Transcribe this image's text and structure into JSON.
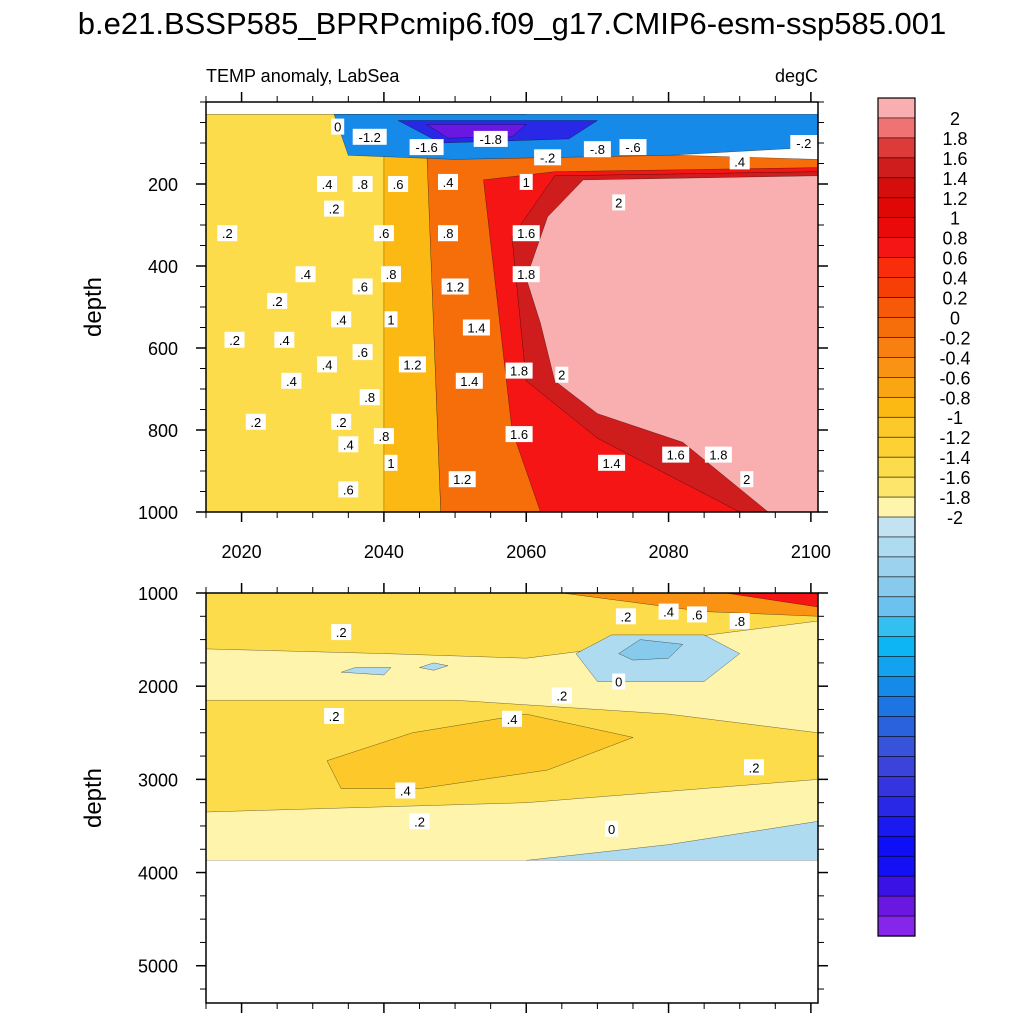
{
  "figure": {
    "title": "b.e21.BSSP585_BPRPcmip6.f09_g17.CMIP6-esm-ssp585.001"
  },
  "chart_data": [
    {
      "type": "heatmap",
      "panel": "upper",
      "subtitle_left": "TEMP anomaly, LabSea",
      "subtitle_right": "degC",
      "xlabel": "",
      "ylabel": "depth",
      "xlim": [
        2015,
        2101
      ],
      "ylim": [
        1000,
        0
      ],
      "xticks": [
        2020,
        2040,
        2060,
        2080,
        2100
      ],
      "xtick_labels": [
        "2020",
        "2040",
        "2060",
        "2080",
        "2100"
      ],
      "yticks": [
        200,
        400,
        600,
        800,
        1000
      ],
      "ytick_labels": [
        "200",
        "400",
        "600",
        "800",
        "1000"
      ],
      "grid": false,
      "regions": [
        {
          "value": 0.3,
          "polygon": [
            [
              2015,
              30
            ],
            [
              2060,
              30
            ],
            [
              2060,
              1000
            ],
            [
              2015,
              1000
            ]
          ]
        },
        {
          "value": 0.6,
          "polygon": [
            [
              2040,
              90
            ],
            [
              2046,
              90
            ],
            [
              2048,
              1000
            ],
            [
              2040,
              1000
            ]
          ]
        },
        {
          "value": 1.0,
          "polygon": [
            [
              2046,
              110
            ],
            [
              2062,
              120
            ],
            [
              2101,
              140
            ],
            [
              2101,
              1000
            ],
            [
              2048,
              1000
            ]
          ]
        },
        {
          "value": 1.4,
          "polygon": [
            [
              2054,
              190
            ],
            [
              2064,
              170
            ],
            [
              2101,
              160
            ],
            [
              2101,
              1000
            ],
            [
              2062,
              1000
            ],
            [
              2058,
              800
            ]
          ]
        },
        {
          "value": 1.8,
          "polygon": [
            [
              2058,
              330
            ],
            [
              2064,
              180
            ],
            [
              2101,
              170
            ],
            [
              2101,
              1000
            ],
            [
              2090,
              1000
            ],
            [
              2070,
              820
            ],
            [
              2060,
              680
            ]
          ]
        },
        {
          "value": 2.1,
          "polygon": [
            [
              2063,
              280
            ],
            [
              2068,
              190
            ],
            [
              2101,
              180
            ],
            [
              2101,
              1000
            ],
            [
              2094,
              1000
            ],
            [
              2082,
              830
            ],
            [
              2070,
              760
            ],
            [
              2064,
              680
            ],
            [
              2062,
              540
            ],
            [
              2060,
              430
            ]
          ]
        },
        {
          "value": -0.8,
          "polygon": [
            [
              2033,
              30
            ],
            [
              2101,
              30
            ],
            [
              2101,
              110
            ],
            [
              2080,
              130
            ],
            [
              2050,
              140
            ],
            [
              2035,
              130
            ]
          ]
        },
        {
          "value": -1.4,
          "polygon": [
            [
              2042,
              45
            ],
            [
              2070,
              45
            ],
            [
              2066,
              90
            ],
            [
              2048,
              100
            ]
          ]
        },
        {
          "value": -1.9,
          "polygon": [
            [
              2046,
              55
            ],
            [
              2060,
              55
            ],
            [
              2058,
              85
            ],
            [
              2049,
              88
            ]
          ]
        }
      ],
      "contour_labels": [
        {
          "text": "0",
          "x": 2033.5,
          "y": 60
        },
        {
          "text": "-1.2",
          "x": 2038,
          "y": 85
        },
        {
          "text": "-1.6",
          "x": 2046,
          "y": 110
        },
        {
          "text": "-1.8",
          "x": 2055,
          "y": 90
        },
        {
          "text": "-.2",
          "x": 2063,
          "y": 135
        },
        {
          "text": "-.8",
          "x": 2070,
          "y": 115
        },
        {
          "text": "-.6",
          "x": 2075,
          "y": 110
        },
        {
          "text": ".4",
          "x": 2090,
          "y": 145
        },
        {
          "text": "-.2",
          "x": 2099,
          "y": 100
        },
        {
          "text": ".4",
          "x": 2032,
          "y": 200
        },
        {
          "text": ".8",
          "x": 2037,
          "y": 200
        },
        {
          "text": ".6",
          "x": 2042,
          "y": 200
        },
        {
          "text": ".4",
          "x": 2049,
          "y": 195
        },
        {
          "text": "1",
          "x": 2060,
          "y": 195
        },
        {
          "text": "2",
          "x": 2073,
          "y": 245
        },
        {
          "text": ".2",
          "x": 2033,
          "y": 260
        },
        {
          "text": ".6",
          "x": 2040,
          "y": 320
        },
        {
          "text": ".8",
          "x": 2049,
          "y": 320
        },
        {
          "text": "1.6",
          "x": 2060,
          "y": 320
        },
        {
          "text": ".2",
          "x": 2018,
          "y": 320
        },
        {
          "text": ".4",
          "x": 2029,
          "y": 420
        },
        {
          "text": ".8",
          "x": 2041,
          "y": 420
        },
        {
          "text": "1.8",
          "x": 2060,
          "y": 420
        },
        {
          "text": ".6",
          "x": 2037,
          "y": 450
        },
        {
          "text": "1.2",
          "x": 2050,
          "y": 450
        },
        {
          "text": ".2",
          "x": 2025,
          "y": 485
        },
        {
          "text": ".4",
          "x": 2034,
          "y": 530
        },
        {
          "text": "1",
          "x": 2041,
          "y": 530
        },
        {
          "text": "1.4",
          "x": 2053,
          "y": 550
        },
        {
          "text": ".2",
          "x": 2019,
          "y": 580
        },
        {
          "text": ".4",
          "x": 2026,
          "y": 580
        },
        {
          "text": ".6",
          "x": 2037,
          "y": 610
        },
        {
          "text": ".4",
          "x": 2032,
          "y": 640
        },
        {
          "text": "1.2",
          "x": 2044,
          "y": 640
        },
        {
          "text": "1.8",
          "x": 2059,
          "y": 655
        },
        {
          "text": "2",
          "x": 2065,
          "y": 665
        },
        {
          "text": "1.4",
          "x": 2052,
          "y": 680
        },
        {
          "text": ".4",
          "x": 2027,
          "y": 680
        },
        {
          "text": ".8",
          "x": 2038,
          "y": 720
        },
        {
          "text": ".2",
          "x": 2022,
          "y": 780
        },
        {
          "text": ".2",
          "x": 2034,
          "y": 780
        },
        {
          "text": "1.6",
          "x": 2059,
          "y": 810
        },
        {
          "text": ".8",
          "x": 2040,
          "y": 815
        },
        {
          "text": ".4",
          "x": 2035,
          "y": 835
        },
        {
          "text": "1.6",
          "x": 2081,
          "y": 860
        },
        {
          "text": "1.8",
          "x": 2087,
          "y": 860
        },
        {
          "text": "1",
          "x": 2041,
          "y": 880
        },
        {
          "text": "1.4",
          "x": 2072,
          "y": 880
        },
        {
          "text": "1.2",
          "x": 2051,
          "y": 920
        },
        {
          "text": "2",
          "x": 2091,
          "y": 920
        },
        {
          "text": ".6",
          "x": 2035,
          "y": 945
        }
      ]
    },
    {
      "type": "heatmap",
      "panel": "lower",
      "xlabel": "",
      "ylabel": "depth",
      "xlim": [
        2015,
        2101
      ],
      "ylim": [
        5400,
        1000
      ],
      "xticks": [
        2020,
        2040,
        2060,
        2080,
        2100
      ],
      "yticks": [
        1000,
        2000,
        3000,
        4000,
        5000
      ],
      "ytick_labels": [
        "1000",
        "2000",
        "3000",
        "4000",
        "5000"
      ],
      "data_bottom_depth": 3870,
      "grid": false,
      "regions": [
        {
          "value": 0.1,
          "polygon": [
            [
              2015,
              1000
            ],
            [
              2101,
              1000
            ],
            [
              2101,
              3870
            ],
            [
              2015,
              3870
            ]
          ]
        },
        {
          "value": 0.3,
          "polygon": [
            [
              2015,
              1000
            ],
            [
              2101,
              1000
            ],
            [
              2101,
              1300
            ],
            [
              2060,
              1700
            ],
            [
              2040,
              1650
            ],
            [
              2015,
              1600
            ]
          ]
        },
        {
          "value": 0.3,
          "polygon": [
            [
              2015,
              2150
            ],
            [
              2050,
              2150
            ],
            [
              2080,
              2300
            ],
            [
              2101,
              2500
            ],
            [
              2101,
              3000
            ],
            [
              2060,
              3250
            ],
            [
              2015,
              3350
            ]
          ]
        },
        {
          "value": 0.5,
          "polygon": [
            [
              2032,
              2800
            ],
            [
              2044,
              2500
            ],
            [
              2060,
              2300
            ],
            [
              2075,
              2550
            ],
            [
              2063,
              2900
            ],
            [
              2045,
              3100
            ],
            [
              2034,
              3100
            ]
          ]
        },
        {
          "value": 0.8,
          "polygon": [
            [
              2065,
              1000
            ],
            [
              2101,
              1000
            ],
            [
              2101,
              1250
            ],
            [
              2085,
              1200
            ]
          ]
        },
        {
          "value": 1.4,
          "polygon": [
            [
              2088,
              1000
            ],
            [
              2101,
              1000
            ],
            [
              2101,
              1150
            ]
          ]
        },
        {
          "value": -0.15,
          "polygon": [
            [
              2067,
              1650
            ],
            [
              2072,
              1450
            ],
            [
              2085,
              1450
            ],
            [
              2090,
              1650
            ],
            [
              2085,
              1950
            ],
            [
              2070,
              1950
            ]
          ]
        },
        {
          "value": -0.35,
          "polygon": [
            [
              2073,
              1650
            ],
            [
              2076,
              1500
            ],
            [
              2082,
              1550
            ],
            [
              2080,
              1700
            ],
            [
              2075,
              1720
            ]
          ]
        },
        {
          "value": -0.15,
          "polygon": [
            [
              2034,
              1850
            ],
            [
              2036,
              1800
            ],
            [
              2041,
              1800
            ],
            [
              2040,
              1880
            ]
          ]
        },
        {
          "value": -0.15,
          "polygon": [
            [
              2045,
              1800
            ],
            [
              2047,
              1750
            ],
            [
              2049,
              1780
            ],
            [
              2047,
              1830
            ]
          ]
        },
        {
          "value": -0.15,
          "polygon": [
            [
              2060,
              3870
            ],
            [
              2080,
              3700
            ],
            [
              2101,
              3450
            ],
            [
              2101,
              3870
            ]
          ]
        }
      ],
      "contour_labels": [
        {
          "text": ".2",
          "x": 2074,
          "y": 1250
        },
        {
          "text": ".4",
          "x": 2080,
          "y": 1200
        },
        {
          "text": ".6",
          "x": 2084,
          "y": 1230
        },
        {
          "text": ".8",
          "x": 2090,
          "y": 1300
        },
        {
          "text": ".2",
          "x": 2034,
          "y": 1420
        },
        {
          "text": "0",
          "x": 2073,
          "y": 1950
        },
        {
          "text": ".2",
          "x": 2065,
          "y": 2100
        },
        {
          "text": ".2",
          "x": 2033,
          "y": 2320
        },
        {
          "text": ".4",
          "x": 2058,
          "y": 2350
        },
        {
          "text": ".2",
          "x": 2092,
          "y": 2870
        },
        {
          "text": ".4",
          "x": 2043,
          "y": 3120
        },
        {
          "text": ".2",
          "x": 2045,
          "y": 3450
        },
        {
          "text": "0",
          "x": 2072,
          "y": 3530
        }
      ]
    }
  ],
  "colorbar": {
    "levels": [
      2.2,
      2,
      1.9,
      1.8,
      1.7,
      1.6,
      1.5,
      1.4,
      1.3,
      1.2,
      1.1,
      1,
      0.9,
      0.8,
      0.7,
      0.6,
      0.5,
      0.4,
      0.3,
      0.2,
      0.1,
      0,
      -0.1,
      -0.2,
      -0.3,
      -0.4,
      -0.5,
      -0.6,
      -0.7,
      -0.8,
      -0.9,
      -1,
      -1.1,
      -1.2,
      -1.3,
      -1.4,
      -1.5,
      -1.6,
      -1.7,
      -1.8,
      -1.9,
      -2,
      -2.2
    ],
    "colors": [
      "#F9AFAF",
      "#EF7373",
      "#DD3A3A",
      "#CF1C1C",
      "#D60D0D",
      "#E00707",
      "#EA0A0A",
      "#F51515",
      "#FA2D0A",
      "#F63F06",
      "#F65A09",
      "#F66E09",
      "#F88010",
      "#FA9314",
      "#FAA612",
      "#FCB913",
      "#FCC82A",
      "#FDD133",
      "#FCDC4A",
      "#FCE56A",
      "#FEF4AC",
      "#C3E3F3",
      "#AEDBF0",
      "#9CD2EE",
      "#87CAEC",
      "#6CC2EE",
      "#35BEF0",
      "#0DB5F5",
      "#12A2F0",
      "#168AE8",
      "#1C75E2",
      "#2A62DE",
      "#3653D9",
      "#3A44DB",
      "#3535E0",
      "#2828E6",
      "#1A1AF0",
      "#0F0FF7",
      "#1410F5",
      "#3B12E6",
      "#6A18E1",
      "#8526EA"
    ],
    "tick_labels": [
      "2",
      "1.8",
      "1.6",
      "1.4",
      "1.2",
      "1",
      "0.8",
      "0.6",
      "0.4",
      "0.2",
      "0",
      "-0.2",
      "-0.4",
      "-0.6",
      "-0.8",
      "-1",
      "-1.2",
      "-1.4",
      "-1.6",
      "-1.8",
      "-2"
    ]
  }
}
